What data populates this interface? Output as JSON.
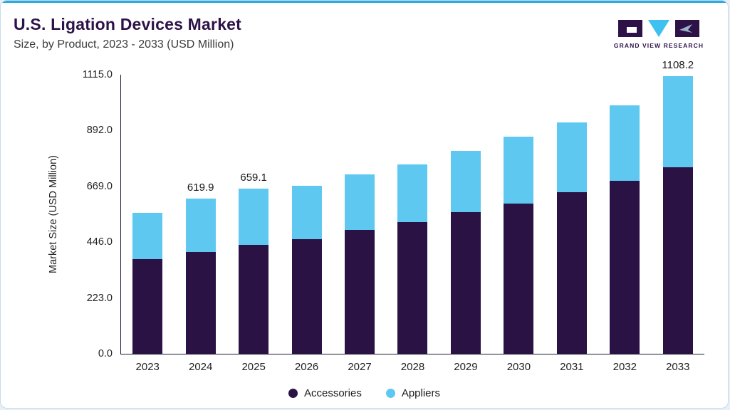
{
  "header": {
    "title": "U.S. Ligation Devices Market",
    "subtitle": "Size, by Product, 2023 - 2033 (USD Million)"
  },
  "logo": {
    "text": "GRAND VIEW RESEARCH"
  },
  "chart_data": {
    "type": "bar",
    "stacked": true,
    "title": "U.S. Ligation Devices Market Size, by Product, 2023 - 2033 (USD Million)",
    "categories": [
      "2023",
      "2024",
      "2025",
      "2026",
      "2027",
      "2028",
      "2029",
      "2030",
      "2031",
      "2032",
      "2033"
    ],
    "series": [
      {
        "name": "Accessories",
        "color": "#2b1244",
        "values": [
          377,
          408,
          434,
          458,
          494,
          525,
          565,
          601,
          647,
          692,
          746
        ]
      },
      {
        "name": "Appliers",
        "color": "#5fc8f1",
        "values": [
          185,
          211.9,
          225.1,
          214,
          224,
          233,
          246,
          267,
          278,
          301,
          362.2
        ]
      }
    ],
    "totals": [
      562,
      619.9,
      659.1,
      672,
      718,
      758,
      811,
      868,
      925,
      993,
      1108.2
    ],
    "totals_labeled": {
      "2024": "619.9",
      "2025": "659.1",
      "2033": "1108.2"
    },
    "xlabel": "",
    "ylabel": "Market Size (USD Million)",
    "yticks": [
      "1115.0",
      "892.0",
      "669.0",
      "446.0",
      "223.0",
      "0.0"
    ],
    "ylim": [
      0,
      1115
    ],
    "grid": false,
    "legend_position": "bottom"
  },
  "legend": [
    {
      "label": "Accessories",
      "color": "#2b1244"
    },
    {
      "label": "Appliers",
      "color": "#5fc8f1"
    }
  ],
  "colors": {
    "accent_line": "#29aae1",
    "title": "#2d1248",
    "axis": "#1a1a2e"
  }
}
